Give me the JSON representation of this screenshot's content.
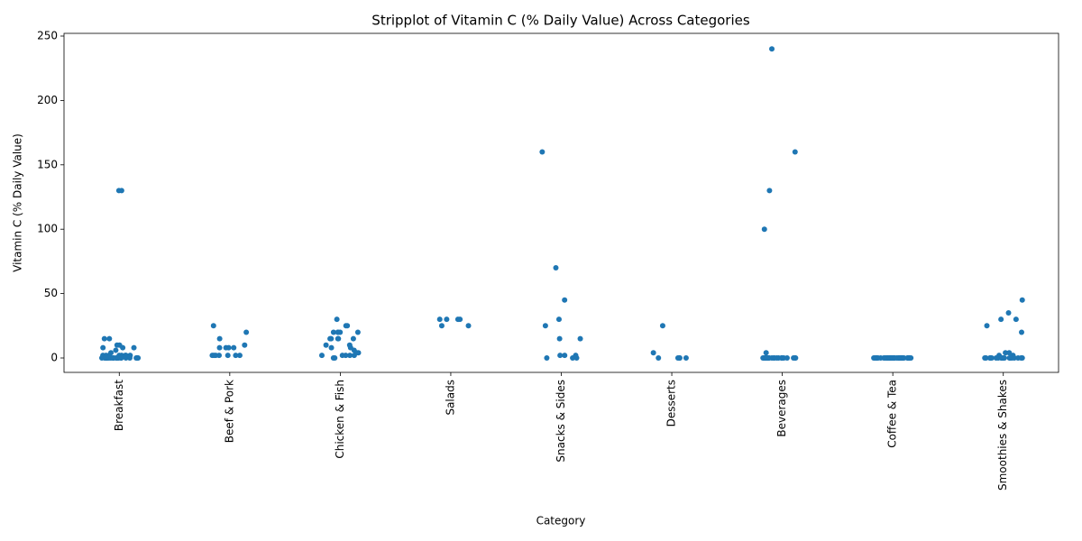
{
  "chart_data": {
    "type": "strip",
    "title": "Stripplot of Vitamin C (% Daily Value) Across Categories",
    "x_label": "Category",
    "y_label": "Vitamin C (% Daily Value)",
    "color": "#1f77b4",
    "categories": [
      "Breakfast",
      "Beef & Pork",
      "Chicken & Fish",
      "Salads",
      "Snacks & Sides",
      "Desserts",
      "Beverages",
      "Coffee & Tea",
      "Smoothies & Shakes"
    ],
    "values": [
      [
        130,
        130,
        15,
        15,
        10,
        10,
        8,
        8,
        8,
        6,
        4,
        2,
        2,
        2,
        2,
        2,
        2,
        2,
        2,
        0,
        0,
        0,
        0,
        0,
        0,
        0,
        0,
        0,
        0,
        0,
        0,
        0,
        0,
        0,
        0,
        0,
        0,
        0,
        0,
        0,
        0,
        0
      ],
      [
        25,
        20,
        15,
        10,
        8,
        8,
        8,
        8,
        2,
        2,
        2,
        2,
        2,
        2,
        2
      ],
      [
        30,
        25,
        25,
        20,
        20,
        20,
        20,
        20,
        15,
        15,
        15,
        15,
        15,
        10,
        10,
        8,
        8,
        6,
        4,
        4,
        2,
        2,
        2,
        2,
        2,
        0,
        0
      ],
      [
        30,
        30,
        30,
        30,
        25,
        25
      ],
      [
        160,
        70,
        45,
        30,
        25,
        15,
        15,
        2,
        2,
        2,
        0,
        0,
        0
      ],
      [
        25,
        4,
        0,
        0,
        0,
        0,
        0
      ],
      [
        240,
        160,
        130,
        100,
        4,
        0,
        0,
        0,
        0,
        0,
        0,
        0,
        0,
        0,
        0,
        0,
        0,
        0,
        0,
        0,
        0,
        0,
        0,
        0,
        0,
        0,
        0
      ],
      [
        0,
        0,
        0,
        0,
        0,
        0,
        0,
        0,
        0,
        0,
        0,
        0,
        0,
        0,
        0,
        0,
        0,
        0,
        0,
        0,
        0,
        0,
        0,
        0,
        0,
        0,
        0,
        0,
        0,
        0,
        0,
        0,
        0,
        0,
        0,
        0,
        0,
        0,
        0,
        0
      ],
      [
        45,
        35,
        30,
        30,
        25,
        20,
        4,
        4,
        2,
        2,
        0,
        0,
        0,
        0,
        0,
        0,
        0,
        0,
        0,
        0,
        0,
        0,
        0,
        0,
        0,
        0,
        0,
        0
      ]
    ],
    "ylim": [
      -11.2,
      252.1
    ],
    "yticks": [
      0,
      50,
      100,
      150,
      200,
      250
    ]
  }
}
